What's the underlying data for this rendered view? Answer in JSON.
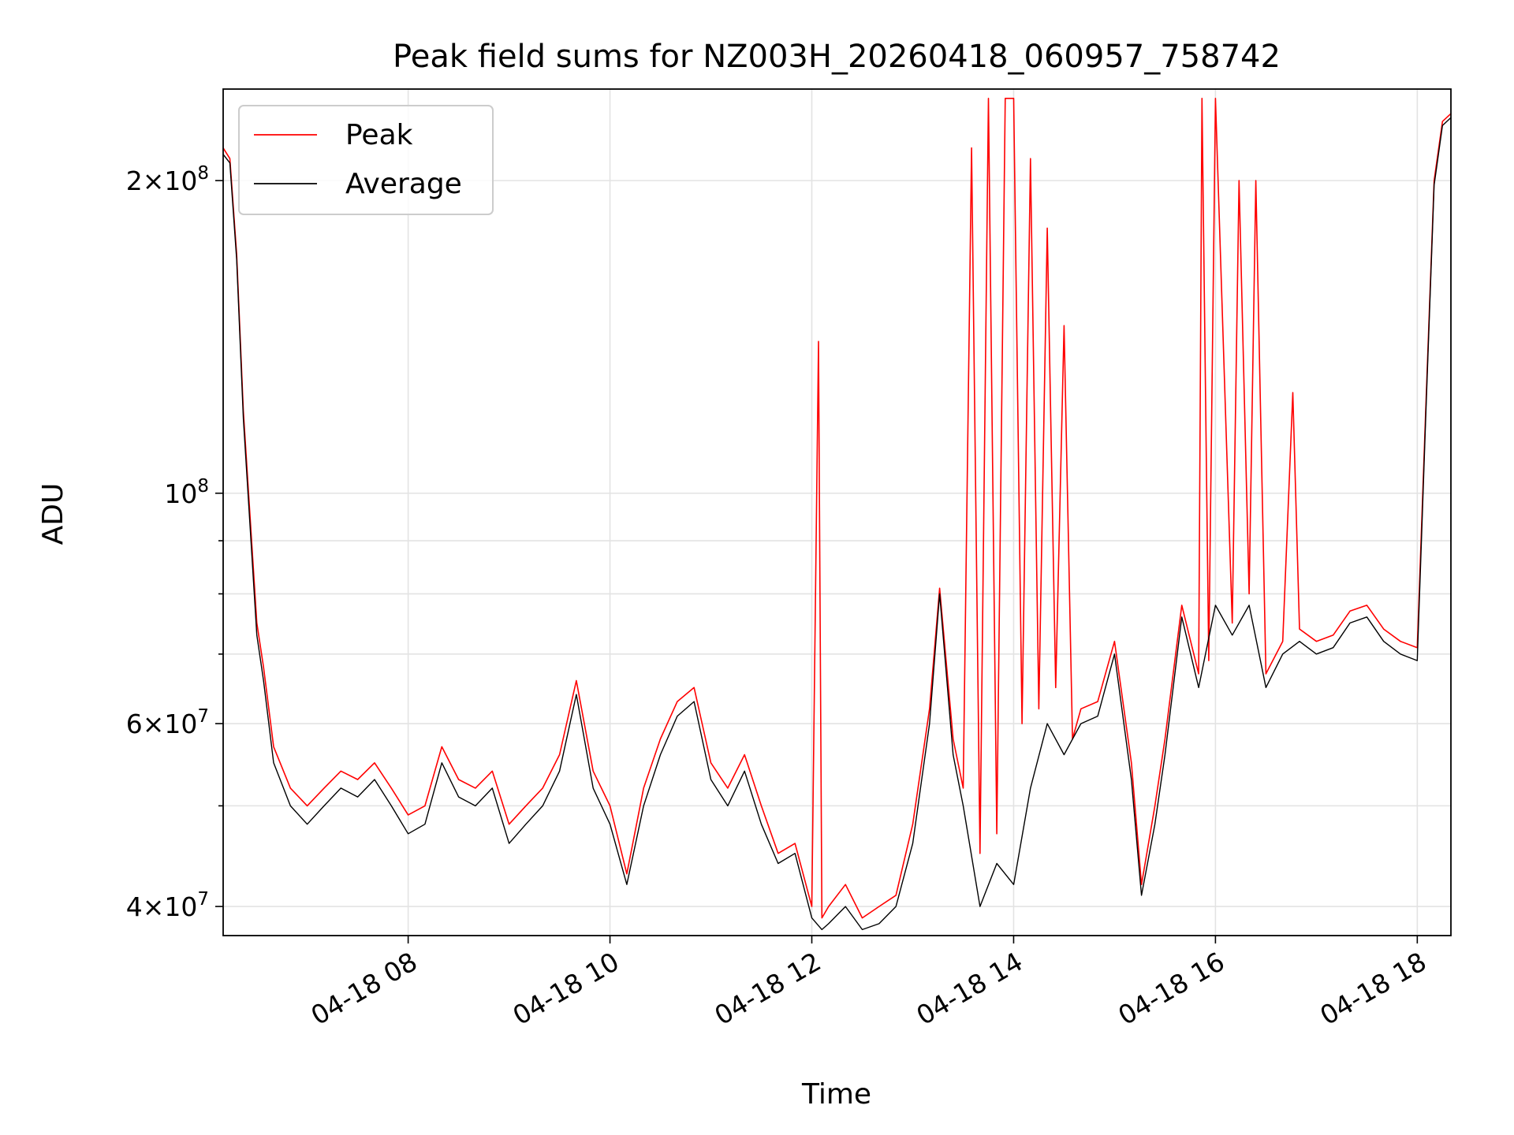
{
  "chart_data": {
    "type": "line",
    "title": "Peak field sums for NZ003H_20260418_060957_758742",
    "xlabel": "Time",
    "ylabel": "ADU",
    "yscale": "log",
    "xlim": [
      "04-18 06:10",
      "04-18 18:20"
    ],
    "ylim": [
      37500000,
      245000000
    ],
    "grid": true,
    "legend": "top-left",
    "x_ticks": [
      "04-18 08",
      "04-18 10",
      "04-18 12",
      "04-18 14",
      "04-18 16",
      "04-18 18"
    ],
    "x_tick_times": [
      "04-18 08:00",
      "04-18 10:00",
      "04-18 12:00",
      "04-18 14:00",
      "04-18 16:00",
      "04-18 18:00"
    ],
    "y_major_ticks": [
      {
        "value": 40000000,
        "mantissa": "4",
        "exponent": "7"
      },
      {
        "value": 60000000,
        "mantissa": "6",
        "exponent": "7"
      },
      {
        "value": 100000000,
        "mantissa": "",
        "exponent": "8"
      },
      {
        "value": 200000000,
        "mantissa": "2",
        "exponent": "8"
      }
    ],
    "y_minor_ticks": [
      50000000,
      70000000,
      80000000,
      90000000
    ],
    "series": [
      {
        "name": "Peak",
        "color": "#ff0000",
        "x": [
          "04-18 06:10",
          "04-18 06:14",
          "04-18 06:18",
          "04-18 06:22",
          "04-18 06:26",
          "04-18 06:30",
          "04-18 06:34",
          "04-18 06:40",
          "04-18 06:50",
          "04-18 07:00",
          "04-18 07:10",
          "04-18 07:20",
          "04-18 07:30",
          "04-18 07:40",
          "04-18 07:50",
          "04-18 08:00",
          "04-18 08:10",
          "04-18 08:20",
          "04-18 08:30",
          "04-18 08:40",
          "04-18 08:50",
          "04-18 09:00",
          "04-18 09:10",
          "04-18 09:20",
          "04-18 09:30",
          "04-18 09:40",
          "04-18 09:50",
          "04-18 10:00",
          "04-18 10:10",
          "04-18 10:20",
          "04-18 10:30",
          "04-18 10:40",
          "04-18 10:50",
          "04-18 11:00",
          "04-18 11:10",
          "04-18 11:20",
          "04-18 11:30",
          "04-18 11:40",
          "04-18 11:50",
          "04-18 12:00",
          "04-18 12:04",
          "04-18 12:06",
          "04-18 12:10",
          "04-18 12:20",
          "04-18 12:30",
          "04-18 12:40",
          "04-18 12:50",
          "04-18 13:00",
          "04-18 13:10",
          "04-18 13:16",
          "04-18 13:24",
          "04-18 13:30",
          "04-18 13:35",
          "04-18 13:40",
          "04-18 13:45",
          "04-18 13:50",
          "04-18 13:55",
          "04-18 14:00",
          "04-18 14:05",
          "04-18 14:10",
          "04-18 14:15",
          "04-18 14:20",
          "04-18 14:25",
          "04-18 14:30",
          "04-18 14:35",
          "04-18 14:40",
          "04-18 14:50",
          "04-18 15:00",
          "04-18 15:10",
          "04-18 15:16",
          "04-18 15:24",
          "04-18 15:30",
          "04-18 15:40",
          "04-18 15:50",
          "04-18 15:52",
          "04-18 15:56",
          "04-18 16:00",
          "04-18 16:10",
          "04-18 16:14",
          "04-18 16:20",
          "04-18 16:24",
          "04-18 16:30",
          "04-18 16:40",
          "04-18 16:46",
          "04-18 16:50",
          "04-18 17:00",
          "04-18 17:10",
          "04-18 17:20",
          "04-18 17:30",
          "04-18 17:40",
          "04-18 17:50",
          "04-18 18:00",
          "04-18 18:05",
          "04-18 18:10",
          "04-18 18:15",
          "04-18 18:20"
        ],
        "y": [
          215000000,
          210000000,
          170000000,
          120000000,
          95000000,
          75000000,
          68000000,
          57000000,
          52000000,
          50000000,
          52000000,
          54000000,
          53000000,
          55000000,
          52000000,
          49000000,
          50000000,
          57000000,
          53000000,
          52000000,
          54000000,
          48000000,
          50000000,
          52000000,
          56000000,
          66000000,
          54000000,
          50000000,
          43000000,
          52000000,
          58000000,
          63000000,
          65000000,
          55000000,
          52000000,
          56000000,
          50000000,
          45000000,
          46000000,
          40000000,
          140000000,
          39000000,
          40000000,
          42000000,
          39000000,
          40000000,
          41000000,
          48000000,
          62000000,
          81000000,
          58000000,
          52000000,
          215000000,
          45000000,
          240000000,
          47000000,
          240000000,
          240000000,
          60000000,
          210000000,
          62000000,
          180000000,
          65000000,
          145000000,
          58000000,
          62000000,
          63000000,
          72000000,
          55000000,
          42000000,
          50000000,
          58000000,
          78000000,
          67000000,
          240000000,
          69000000,
          240000000,
          75000000,
          200000000,
          80000000,
          200000000,
          67000000,
          72000000,
          125000000,
          74000000,
          72000000,
          73000000,
          77000000,
          78000000,
          74000000,
          72000000,
          71000000,
          120000000,
          200000000,
          228000000,
          232000000
        ]
      },
      {
        "name": "Average",
        "color": "#000000",
        "x": [
          "04-18 06:10",
          "04-18 06:14",
          "04-18 06:18",
          "04-18 06:22",
          "04-18 06:26",
          "04-18 06:30",
          "04-18 06:34",
          "04-18 06:40",
          "04-18 06:50",
          "04-18 07:00",
          "04-18 07:10",
          "04-18 07:20",
          "04-18 07:30",
          "04-18 07:40",
          "04-18 07:50",
          "04-18 08:00",
          "04-18 08:10",
          "04-18 08:20",
          "04-18 08:30",
          "04-18 08:40",
          "04-18 08:50",
          "04-18 09:00",
          "04-18 09:10",
          "04-18 09:20",
          "04-18 09:30",
          "04-18 09:40",
          "04-18 09:50",
          "04-18 10:00",
          "04-18 10:10",
          "04-18 10:20",
          "04-18 10:30",
          "04-18 10:40",
          "04-18 10:50",
          "04-18 11:00",
          "04-18 11:10",
          "04-18 11:20",
          "04-18 11:30",
          "04-18 11:40",
          "04-18 11:50",
          "04-18 12:00",
          "04-18 12:06",
          "04-18 12:10",
          "04-18 12:20",
          "04-18 12:30",
          "04-18 12:40",
          "04-18 12:50",
          "04-18 13:00",
          "04-18 13:10",
          "04-18 13:16",
          "04-18 13:24",
          "04-18 13:30",
          "04-18 13:40",
          "04-18 13:50",
          "04-18 14:00",
          "04-18 14:10",
          "04-18 14:20",
          "04-18 14:30",
          "04-18 14:40",
          "04-18 14:50",
          "04-18 15:00",
          "04-18 15:10",
          "04-18 15:16",
          "04-18 15:24",
          "04-18 15:30",
          "04-18 15:40",
          "04-18 15:50",
          "04-18 16:00",
          "04-18 16:10",
          "04-18 16:20",
          "04-18 16:30",
          "04-18 16:40",
          "04-18 16:50",
          "04-18 17:00",
          "04-18 17:10",
          "04-18 17:20",
          "04-18 17:30",
          "04-18 17:40",
          "04-18 17:50",
          "04-18 18:00",
          "04-18 18:05",
          "04-18 18:10",
          "04-18 18:15",
          "04-18 18:20"
        ],
        "y": [
          212000000,
          208000000,
          168000000,
          118000000,
          93000000,
          73000000,
          66000000,
          55000000,
          50000000,
          48000000,
          50000000,
          52000000,
          51000000,
          53000000,
          50000000,
          47000000,
          48000000,
          55000000,
          51000000,
          50000000,
          52000000,
          46000000,
          48000000,
          50000000,
          54000000,
          64000000,
          52000000,
          48000000,
          42000000,
          50000000,
          56000000,
          61000000,
          63000000,
          53000000,
          50000000,
          54000000,
          48000000,
          44000000,
          45000000,
          39000000,
          38000000,
          38500000,
          40000000,
          38000000,
          38500000,
          40000000,
          46000000,
          60000000,
          80000000,
          56000000,
          50000000,
          40000000,
          44000000,
          42000000,
          52000000,
          60000000,
          56000000,
          60000000,
          61000000,
          70000000,
          53000000,
          41000000,
          48000000,
          56000000,
          76000000,
          65000000,
          78000000,
          73000000,
          78000000,
          65000000,
          70000000,
          72000000,
          70000000,
          71000000,
          75000000,
          76000000,
          72000000,
          70000000,
          69000000,
          118000000,
          198000000,
          226000000,
          230000000
        ]
      }
    ]
  }
}
